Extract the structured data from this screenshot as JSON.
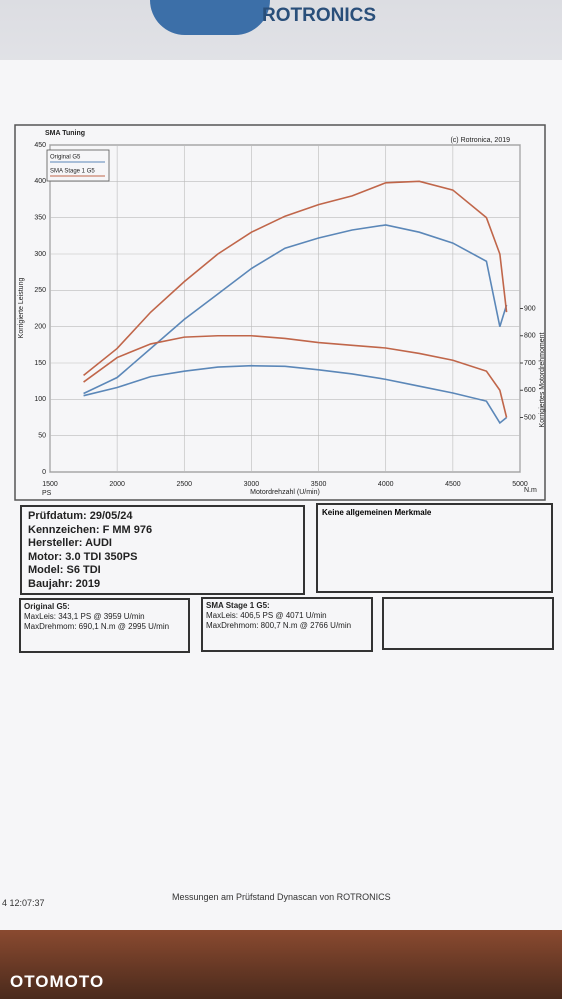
{
  "header": {
    "logo": "ROTRONICS"
  },
  "chart_data": {
    "type": "line",
    "title": "SMA Tuning",
    "subtitle": "(c) Rotronica, 2019",
    "xlabel": "Motordrehzahl (U/min)",
    "ylabel": "Korrigierte Leistung",
    "y2label": "Korrigiertes Motordrehmoment",
    "yunit": "PS",
    "y2unit": "N.m",
    "x": [
      1750,
      2000,
      2250,
      2500,
      2750,
      3000,
      3250,
      3500,
      3750,
      4000,
      4250,
      4500,
      4750,
      4850,
      4900
    ],
    "series": [
      {
        "name": "Original G5",
        "color": "#5b87b8",
        "values": [
          108,
          130,
          170,
          210,
          245,
          280,
          308,
          322,
          333,
          340,
          330,
          315,
          290,
          200,
          230
        ],
        "y2_values": [
          580,
          610,
          650,
          670,
          685,
          690,
          688,
          675,
          660,
          640,
          615,
          590,
          560,
          480,
          500
        ]
      },
      {
        "name": "SMA Stage 1 G5",
        "color": "#c0664a",
        "values": [
          133,
          170,
          220,
          262,
          300,
          330,
          352,
          368,
          380,
          398,
          400,
          388,
          350,
          300,
          220
        ],
        "y2_values": [
          630,
          720,
          770,
          795,
          800,
          800,
          790,
          775,
          765,
          755,
          735,
          710,
          670,
          600,
          500
        ]
      }
    ],
    "xlim": [
      1500,
      5000
    ],
    "xticks": [
      1500,
      2000,
      2500,
      3000,
      3500,
      4000,
      4500,
      5000
    ],
    "ylim": [
      0,
      450
    ],
    "yticks": [
      0,
      50,
      100,
      150,
      200,
      250,
      300,
      350,
      400,
      450
    ],
    "y2lim": [
      300,
      1500
    ],
    "y2ticks": [
      500,
      600,
      700,
      800,
      900
    ],
    "grid": true,
    "legend": "upper left"
  },
  "vehicle": [
    "Prüfdatum: 29/05/24",
    "Kennzeichen: F MM 976",
    "Hersteller: AUDI",
    "Motor: 3.0 TDI 350PS",
    "Model: S6 TDI",
    "Baujahr: 2019"
  ],
  "notes": "Keine allgemeinen Merkmale",
  "results": [
    {
      "title": "Original G5:",
      "lines": [
        "MaxLeis: 343,1 PS @ 3959 U/min",
        "MaxDrehmom: 690,1 N.m @ 2995 U/min"
      ]
    },
    {
      "title": "SMA Stage 1 G5:",
      "lines": [
        "MaxLeis: 406,5 PS @ 4071 U/min",
        "MaxDrehmom: 800,7 N.m @ 2766 U/min"
      ]
    }
  ],
  "footer": {
    "time": "4 12:07:37",
    "text": "Messungen am Prüfstand Dynascan von ROTRONICS"
  },
  "watermark": "OTOMOTO"
}
